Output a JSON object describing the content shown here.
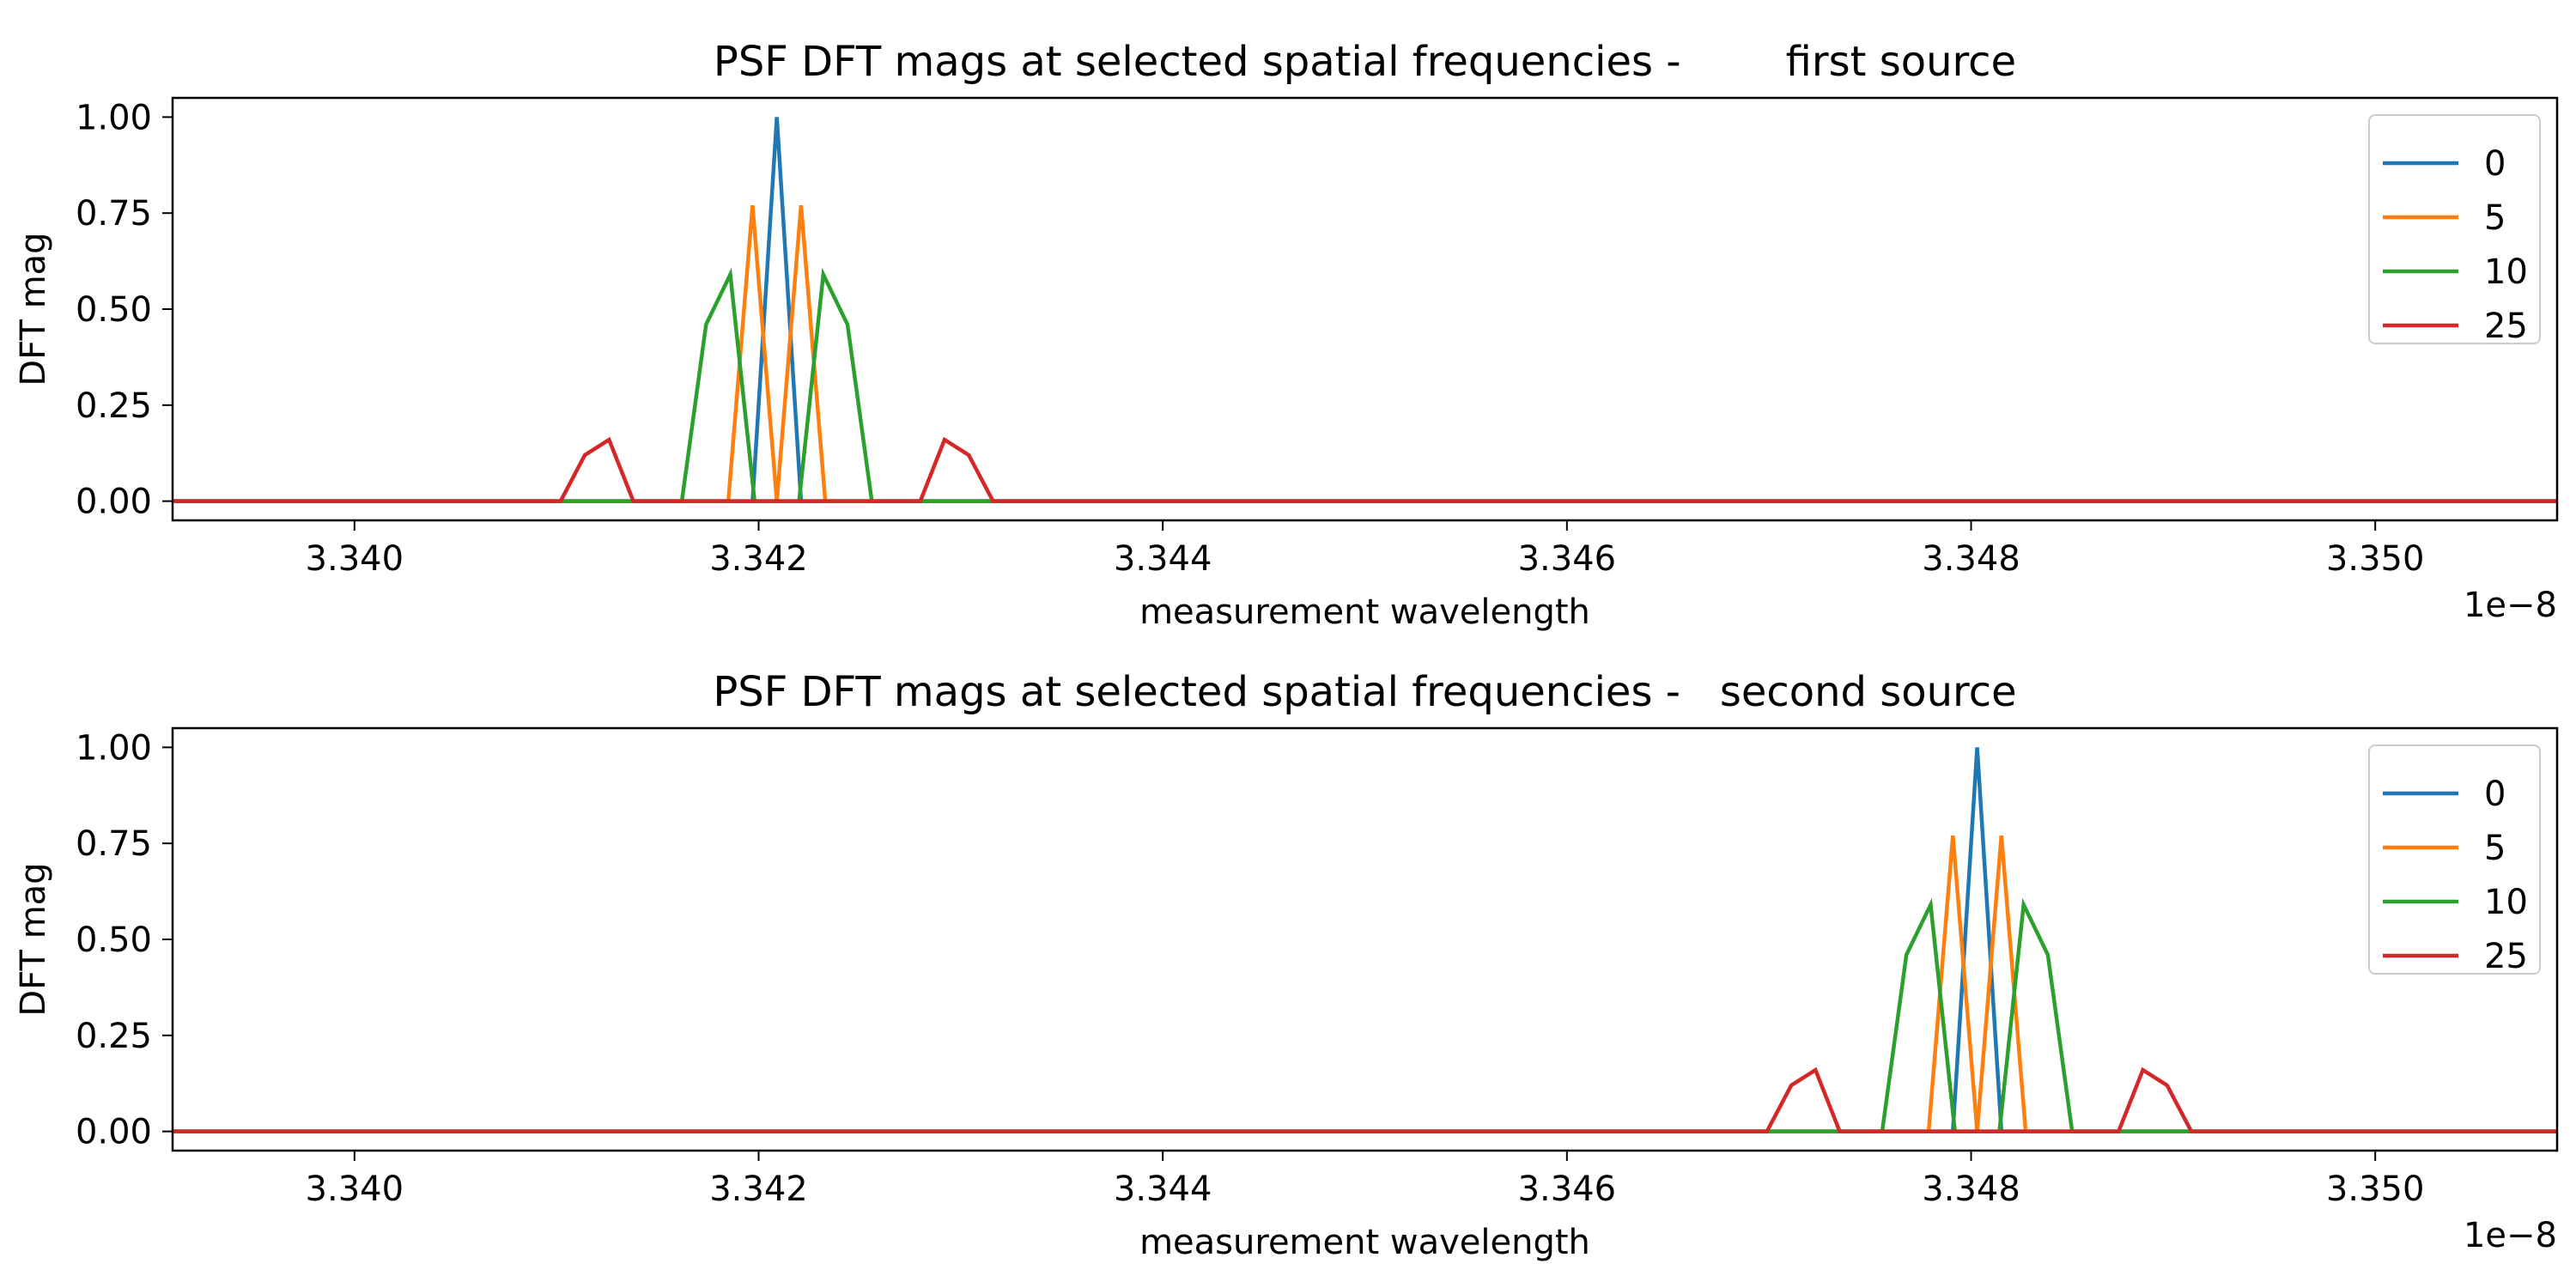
{
  "chart_data": [
    {
      "type": "line",
      "title": "PSF DFT mags at selected spatial frequencies -        first source",
      "xlabel": "measurement wavelength",
      "ylabel": "DFT mag",
      "x_offset_label": "1e−8",
      "x_scale": 1e-08,
      "xlim": [
        3.3391,
        3.3509
      ],
      "ylim": [
        -0.05,
        1.05
      ],
      "x_ticks": [
        3.34,
        3.342,
        3.344,
        3.346,
        3.348,
        3.35
      ],
      "x_tick_labels": [
        "3.340",
        "3.342",
        "3.344",
        "3.346",
        "3.348",
        "3.350"
      ],
      "y_ticks": [
        0.0,
        0.25,
        0.5,
        0.75,
        1.0
      ],
      "y_tick_labels": [
        "0.00",
        "0.25",
        "0.50",
        "0.75",
        "1.00"
      ],
      "legend": "top-right",
      "grid": false,
      "series": [
        {
          "name": "0",
          "color": "#1f77b4",
          "x": [
            3.3391,
            3.34197,
            3.34209,
            3.34221,
            3.3509
          ],
          "y": [
            0,
            0,
            1.0,
            0,
            0
          ]
        },
        {
          "name": "5",
          "color": "#ff7f0e",
          "x": [
            3.3391,
            3.34185,
            3.34197,
            3.34209,
            3.34221,
            3.34233,
            3.3509
          ],
          "y": [
            0,
            0,
            0.77,
            0,
            0.77,
            0,
            0
          ]
        },
        {
          "name": "10",
          "color": "#2ca02c",
          "x": [
            3.3391,
            3.34162,
            3.34174,
            3.34186,
            3.34198,
            3.34209,
            3.3422,
            3.34232,
            3.34244,
            3.34256,
            3.3509
          ],
          "y": [
            0,
            0,
            0.46,
            0.59,
            0,
            0,
            0,
            0.59,
            0.46,
            0,
            0
          ]
        },
        {
          "name": "25",
          "color": "#d62728",
          "x": [
            3.3391,
            3.34102,
            3.34114,
            3.34126,
            3.34138,
            3.3428,
            3.34292,
            3.34304,
            3.34316,
            3.3509
          ],
          "y": [
            0,
            0,
            0.12,
            0.16,
            0,
            0,
            0.16,
            0.12,
            0,
            0
          ]
        }
      ]
    },
    {
      "type": "line",
      "title": "PSF DFT mags at selected spatial frequencies -   second source",
      "xlabel": "measurement wavelength",
      "ylabel": "DFT mag",
      "x_offset_label": "1e−8",
      "x_scale": 1e-08,
      "xlim": [
        3.3391,
        3.3509
      ],
      "ylim": [
        -0.05,
        1.05
      ],
      "x_ticks": [
        3.34,
        3.342,
        3.344,
        3.346,
        3.348,
        3.35
      ],
      "x_tick_labels": [
        "3.340",
        "3.342",
        "3.344",
        "3.346",
        "3.348",
        "3.350"
      ],
      "y_ticks": [
        0.0,
        0.25,
        0.5,
        0.75,
        1.0
      ],
      "y_tick_labels": [
        "0.00",
        "0.25",
        "0.50",
        "0.75",
        "1.00"
      ],
      "legend": "top-right",
      "grid": false,
      "series": [
        {
          "name": "0",
          "color": "#1f77b4",
          "x": [
            3.3391,
            3.34791,
            3.34803,
            3.34815,
            3.3509
          ],
          "y": [
            0,
            0,
            1.0,
            0,
            0
          ]
        },
        {
          "name": "5",
          "color": "#ff7f0e",
          "x": [
            3.3391,
            3.34779,
            3.34791,
            3.34803,
            3.34815,
            3.34827,
            3.3509
          ],
          "y": [
            0,
            0,
            0.77,
            0,
            0.77,
            0,
            0
          ]
        },
        {
          "name": "10",
          "color": "#2ca02c",
          "x": [
            3.3391,
            3.34756,
            3.34768,
            3.3478,
            3.34792,
            3.34803,
            3.34814,
            3.34826,
            3.34838,
            3.3485,
            3.3509
          ],
          "y": [
            0,
            0,
            0.46,
            0.59,
            0,
            0,
            0,
            0.59,
            0.46,
            0,
            0
          ]
        },
        {
          "name": "25",
          "color": "#d62728",
          "x": [
            3.3391,
            3.34699,
            3.34711,
            3.34723,
            3.34735,
            3.34873,
            3.34885,
            3.34897,
            3.34909,
            3.3509
          ],
          "y": [
            0,
            0,
            0.12,
            0.16,
            0,
            0,
            0.16,
            0.12,
            0,
            0
          ]
        }
      ]
    }
  ]
}
